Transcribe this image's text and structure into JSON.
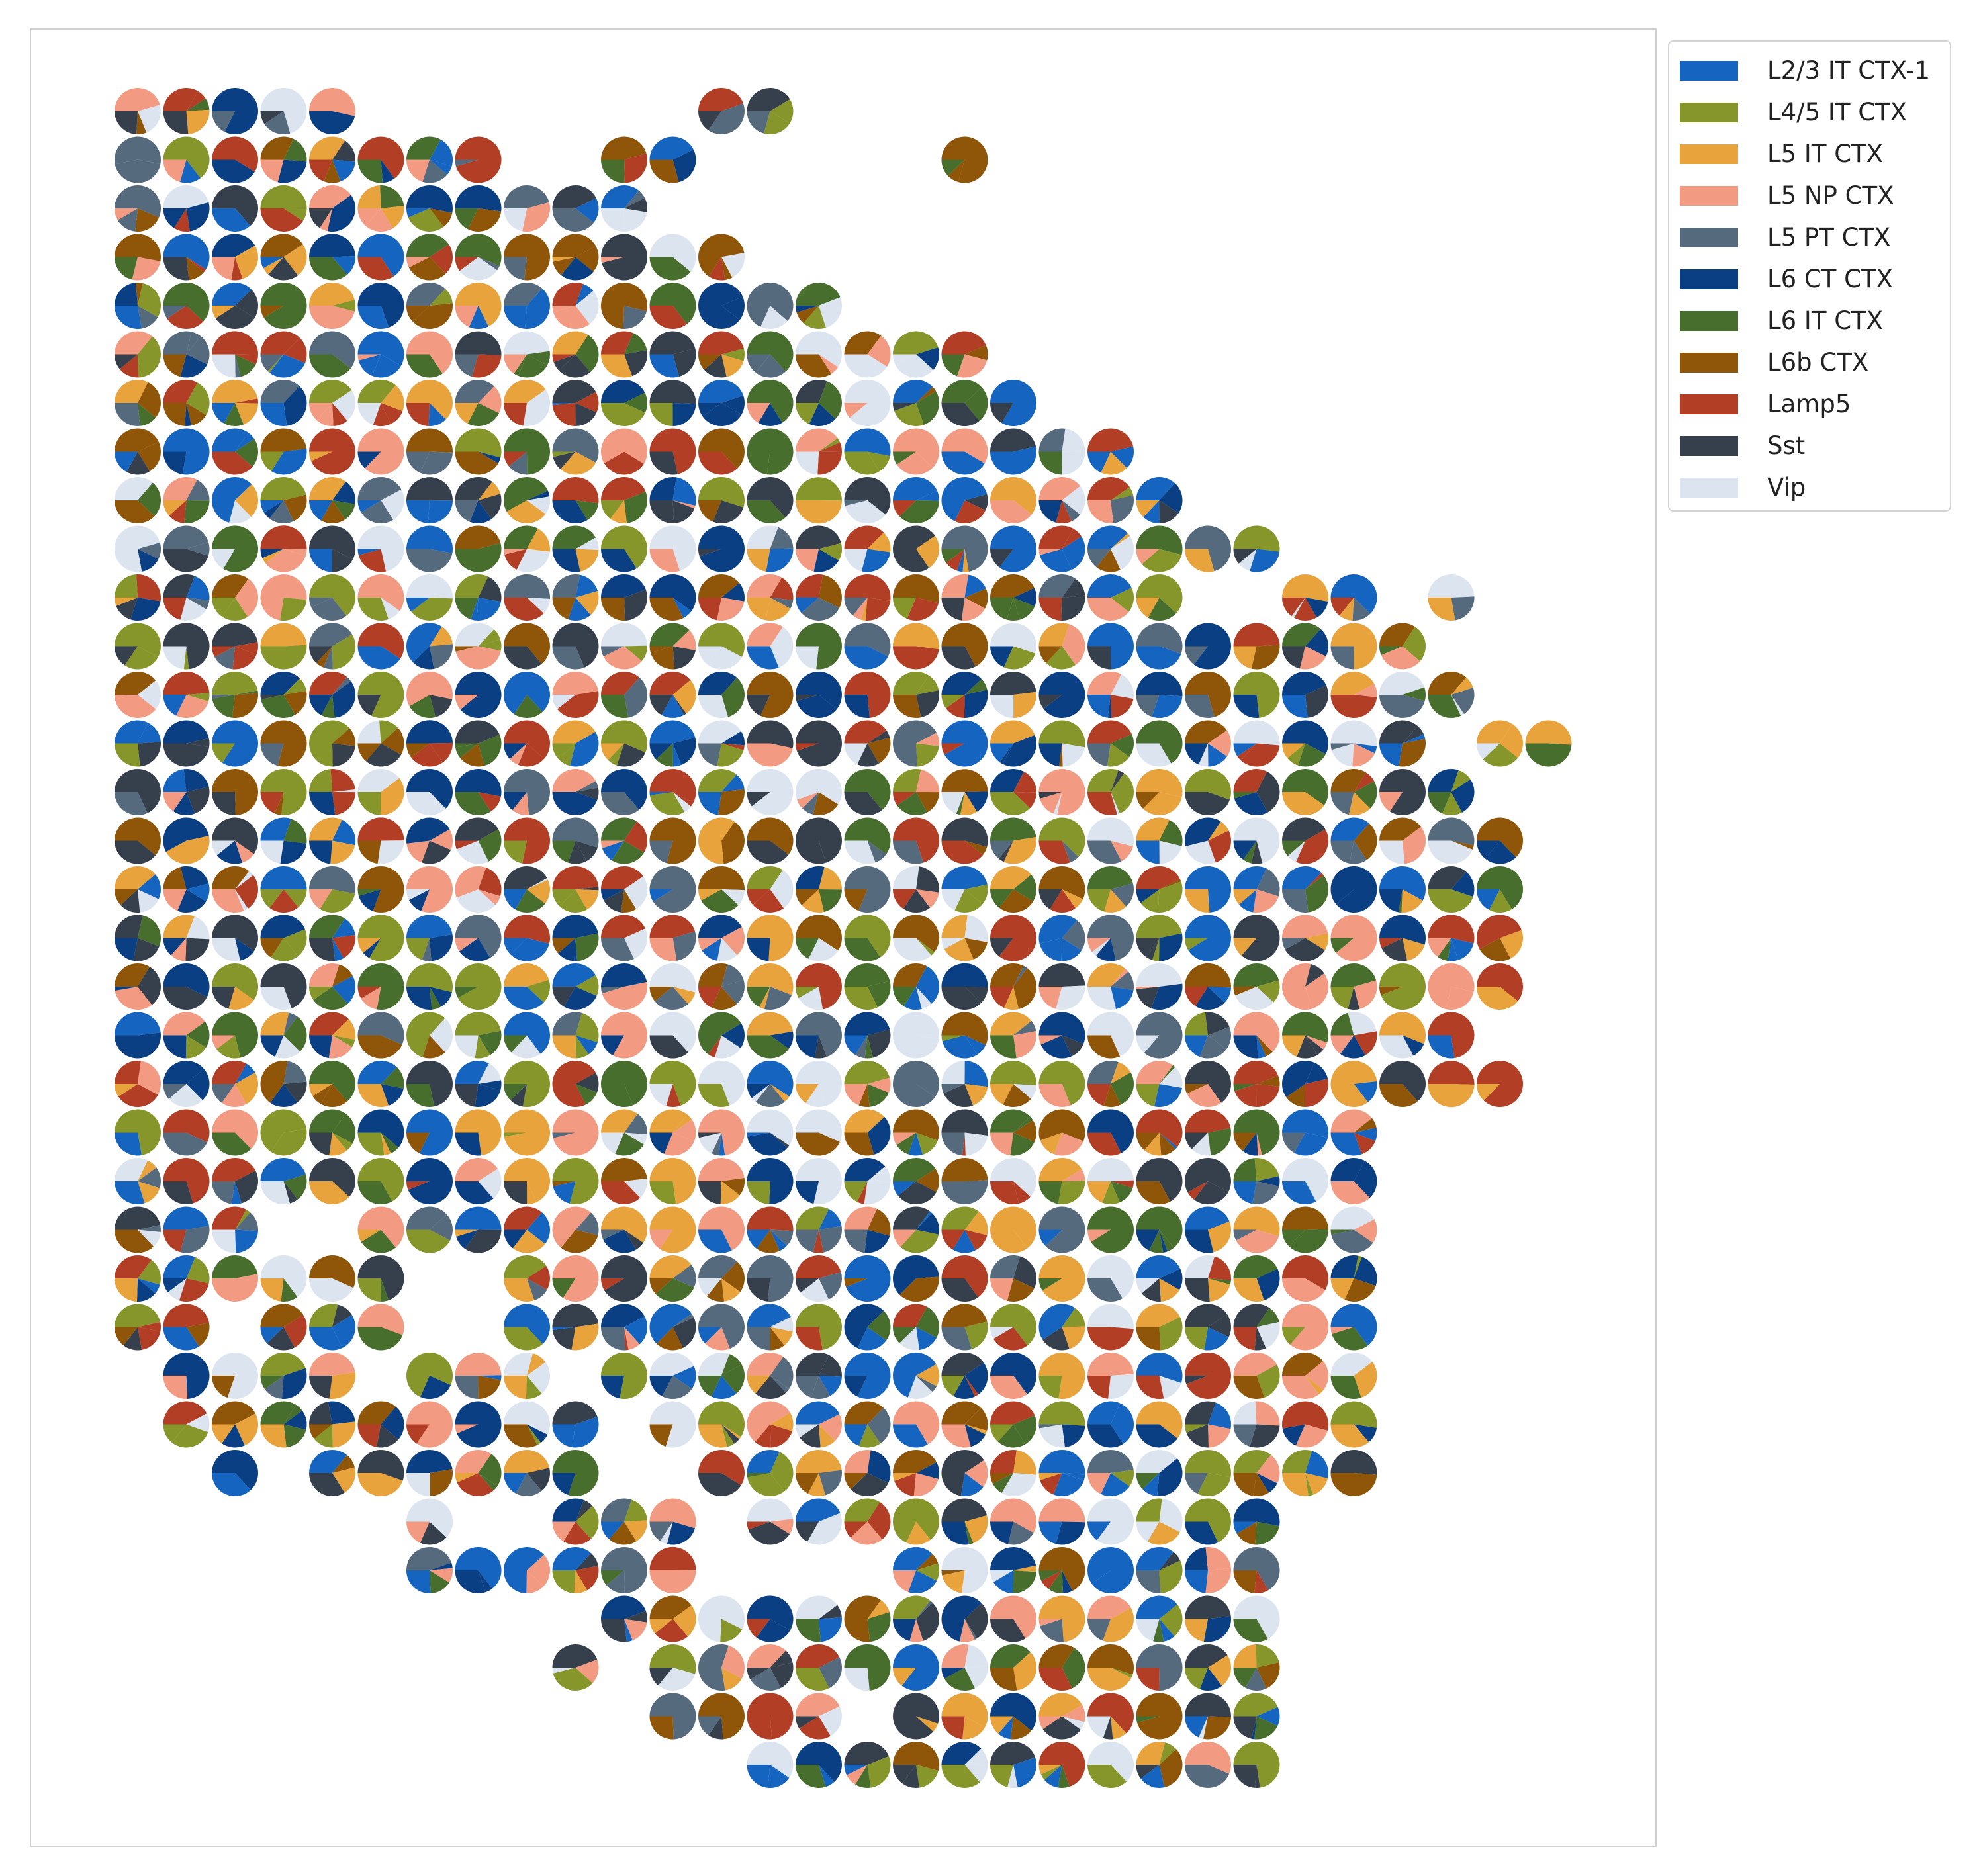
{
  "chart_data": {
    "type": "spatial-pie-scatter",
    "cell_types": [
      {
        "name": "L2/3 IT CTX-1",
        "color": "#1565c0"
      },
      {
        "name": "L4/5 IT CTX",
        "color": "#86962a"
      },
      {
        "name": "L5 IT CTX",
        "color": "#e8a33d"
      },
      {
        "name": "L5 NP CTX",
        "color": "#f39a82"
      },
      {
        "name": "L5 PT CTX",
        "color": "#566a7e"
      },
      {
        "name": "L6 CT CTX",
        "color": "#0a3f84"
      },
      {
        "name": "L6 IT CTX",
        "color": "#476e2d"
      },
      {
        "name": "L6b CTX",
        "color": "#8f5508"
      },
      {
        "name": "Lamp5",
        "color": "#b23e25"
      },
      {
        "name": "Sst",
        "color": "#363f4c"
      },
      {
        "name": "Vip",
        "color": "#dce4ef"
      }
    ],
    "grid": {
      "columns": 30,
      "rows": 35
    },
    "row_extents": [
      {
        "row": 0,
        "ranges": [
          [
            0,
            4
          ],
          [
            12,
            13
          ]
        ]
      },
      {
        "row": 1,
        "ranges": [
          [
            0,
            7
          ],
          [
            10,
            11
          ],
          [
            17,
            17
          ]
        ]
      },
      {
        "row": 2,
        "ranges": [
          [
            0,
            10
          ]
        ]
      },
      {
        "row": 3,
        "ranges": [
          [
            0,
            12
          ]
        ]
      },
      {
        "row": 4,
        "ranges": [
          [
            0,
            14
          ]
        ]
      },
      {
        "row": 5,
        "ranges": [
          [
            0,
            17
          ]
        ]
      },
      {
        "row": 6,
        "ranges": [
          [
            0,
            18
          ]
        ]
      },
      {
        "row": 7,
        "ranges": [
          [
            0,
            20
          ]
        ]
      },
      {
        "row": 8,
        "ranges": [
          [
            0,
            21
          ]
        ]
      },
      {
        "row": 9,
        "ranges": [
          [
            0,
            23
          ]
        ]
      },
      {
        "row": 10,
        "ranges": [
          [
            0,
            21
          ],
          [
            24,
            25
          ],
          [
            27,
            27
          ]
        ]
      },
      {
        "row": 11,
        "ranges": [
          [
            0,
            26
          ]
        ]
      },
      {
        "row": 12,
        "ranges": [
          [
            0,
            27
          ]
        ]
      },
      {
        "row": 13,
        "ranges": [
          [
            0,
            26
          ],
          [
            28,
            29
          ]
        ]
      },
      {
        "row": 14,
        "ranges": [
          [
            0,
            27
          ]
        ]
      },
      {
        "row": 15,
        "ranges": [
          [
            0,
            28
          ]
        ]
      },
      {
        "row": 16,
        "ranges": [
          [
            0,
            28
          ]
        ]
      },
      {
        "row": 17,
        "ranges": [
          [
            0,
            28
          ]
        ]
      },
      {
        "row": 18,
        "ranges": [
          [
            0,
            28
          ]
        ]
      },
      {
        "row": 19,
        "ranges": [
          [
            0,
            27
          ]
        ]
      },
      {
        "row": 20,
        "ranges": [
          [
            0,
            28
          ]
        ]
      },
      {
        "row": 21,
        "ranges": [
          [
            0,
            25
          ]
        ]
      },
      {
        "row": 22,
        "ranges": [
          [
            0,
            4
          ],
          [
            5,
            25
          ]
        ]
      },
      {
        "row": 23,
        "ranges": [
          [
            0,
            2
          ],
          [
            5,
            25
          ]
        ]
      },
      {
        "row": 24,
        "ranges": [
          [
            0,
            5
          ],
          [
            8,
            25
          ]
        ]
      },
      {
        "row": 25,
        "ranges": [
          [
            0,
            1
          ],
          [
            3,
            5
          ],
          [
            8,
            25
          ]
        ]
      },
      {
        "row": 26,
        "ranges": [
          [
            1,
            4
          ],
          [
            6,
            8
          ],
          [
            10,
            25
          ]
        ]
      },
      {
        "row": 27,
        "ranges": [
          [
            1,
            9
          ],
          [
            11,
            25
          ]
        ]
      },
      {
        "row": 28,
        "ranges": [
          [
            2,
            2
          ],
          [
            4,
            9
          ],
          [
            12,
            25
          ]
        ]
      },
      {
        "row": 29,
        "ranges": [
          [
            6,
            6
          ],
          [
            9,
            11
          ],
          [
            13,
            23
          ]
        ]
      },
      {
        "row": 30,
        "ranges": [
          [
            6,
            11
          ],
          [
            16,
            23
          ]
        ]
      },
      {
        "row": 31,
        "ranges": [
          [
            10,
            23
          ]
        ]
      },
      {
        "row": 32,
        "ranges": [
          [
            9,
            9
          ],
          [
            11,
            23
          ]
        ]
      },
      {
        "row": 33,
        "ranges": [
          [
            11,
            14
          ],
          [
            16,
            23
          ]
        ]
      },
      {
        "row": 34,
        "ranges": [
          [
            13,
            23
          ]
        ]
      }
    ],
    "legend_position": "outside-top-right",
    "axes": "hidden",
    "title": "",
    "xlabel": "",
    "ylabel": ""
  }
}
